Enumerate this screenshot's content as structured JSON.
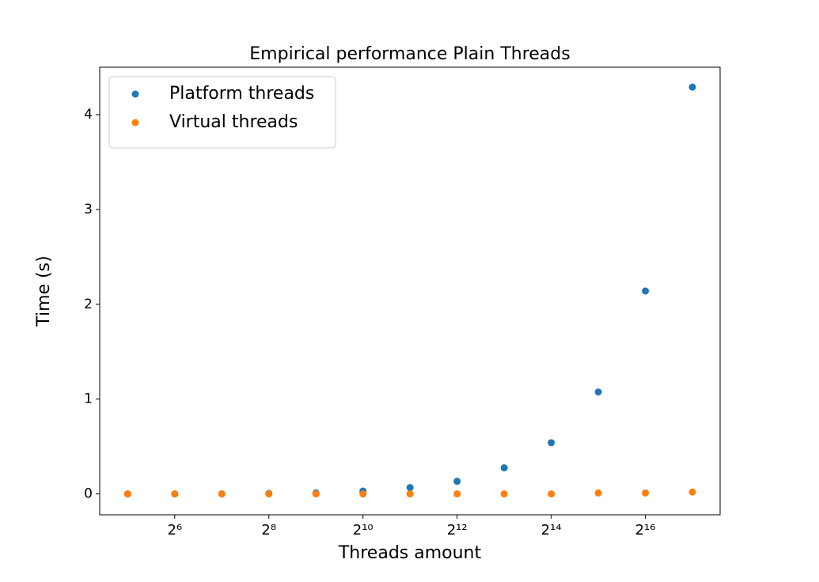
{
  "chart_data": {
    "type": "scatter",
    "title": "Empirical performance Plain Threads",
    "xlabel": "Threads amount",
    "ylabel": "Time (s)",
    "xscale": "log2",
    "x": [
      32,
      64,
      128,
      256,
      512,
      1024,
      2048,
      4096,
      8192,
      16384,
      32768,
      65536,
      131072
    ],
    "series": [
      {
        "name": "Platform threads",
        "color": "#1f77b4",
        "values": [
          0.0,
          0.0,
          0.0,
          0.005,
          0.01,
          0.03,
          0.067,
          0.133,
          0.275,
          0.54,
          1.075,
          2.14,
          4.29
        ]
      },
      {
        "name": "Virtual threads",
        "color": "#ff7f0e",
        "values": [
          0.0,
          0.0,
          0.0,
          0.0,
          0.0,
          0.0,
          0.0,
          0.0,
          0.0,
          0.0,
          0.01,
          0.01,
          0.02
        ]
      }
    ],
    "xlim": [
      21.2,
      197000
    ],
    "ylim": [
      -0.22,
      4.5
    ],
    "xticks": [
      {
        "value": 64,
        "label": "2⁶"
      },
      {
        "value": 256,
        "label": "2⁸"
      },
      {
        "value": 1024,
        "label": "2¹⁰"
      },
      {
        "value": 4096,
        "label": "2¹²"
      },
      {
        "value": 16384,
        "label": "2¹⁴"
      },
      {
        "value": 65536,
        "label": "2¹⁶"
      }
    ],
    "yticks": [
      0,
      1,
      2,
      3,
      4
    ],
    "grid": false,
    "legend": "upper-left"
  }
}
